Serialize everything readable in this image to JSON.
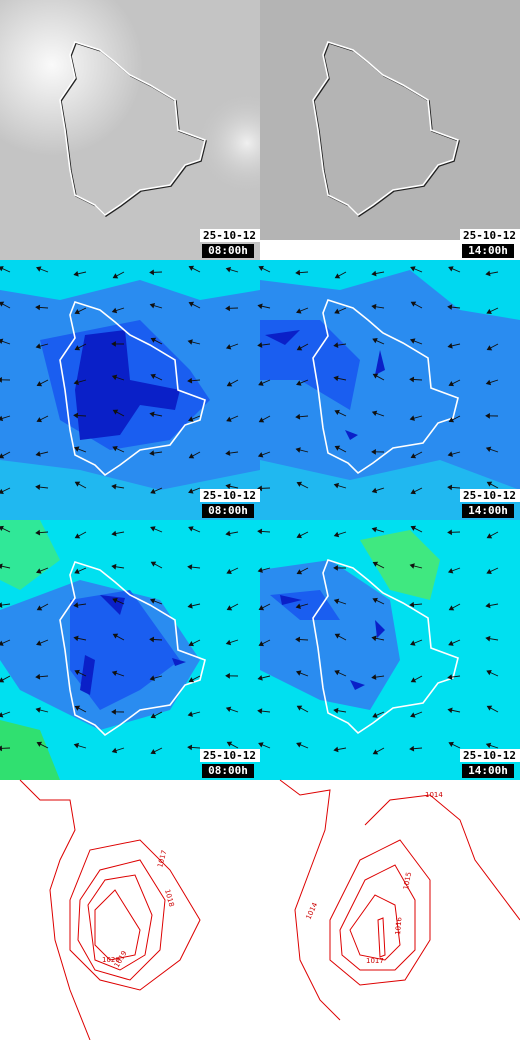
{
  "panels": [
    {
      "date": "25-10-12",
      "time": "08:00h"
    },
    {
      "date": "25-10-12",
      "time": "14:00h"
    },
    {
      "date": "25-10-12",
      "time": "08:00h"
    },
    {
      "date": "25-10-12",
      "time": "14:00h"
    },
    {
      "date": "25-10-12",
      "time": "08:00h"
    },
    {
      "date": "25-10-12",
      "time": "14:00h"
    }
  ],
  "contours": {
    "left": [
      1017,
      1018,
      1020,
      1019
    ],
    "right": [
      1014,
      1015,
      1016,
      1014,
      1017
    ]
  }
}
